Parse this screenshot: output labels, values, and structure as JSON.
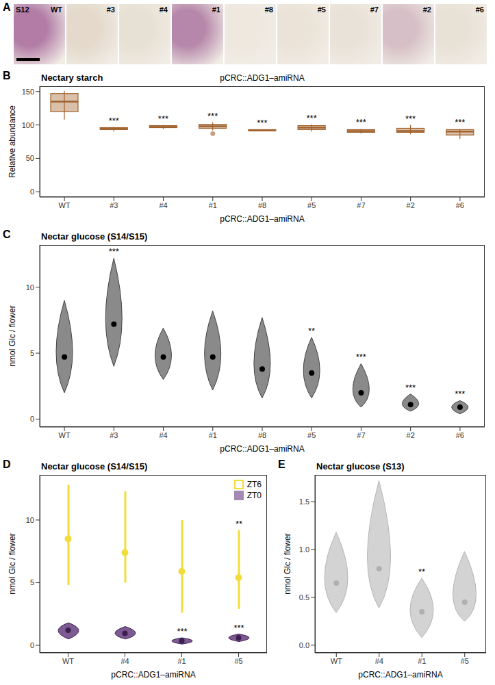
{
  "panel_a": {
    "panel_label": "A",
    "stage": "S12",
    "labels": [
      "WT",
      "#3",
      "#4",
      "#1",
      "#8",
      "#5",
      "#7",
      "#2",
      "#6"
    ],
    "colors": [
      "#b27ca6",
      "#e4d9cb",
      "#e7e0d4",
      "#b687aa",
      "#eee8df",
      "#ebe3d8",
      "#e9e2d8",
      "#d6bfc6",
      "#e8e1d6"
    ]
  },
  "chart_data": [
    {
      "panel_label": "B",
      "type": "box",
      "title": "Nectary starch",
      "subtitle": "pCRC::ADG1–amiRNA",
      "x_label": "pCRC::ADG1–amiRNA",
      "y_label": "Relative abundance",
      "categories": [
        "WT",
        "#3",
        "#4",
        "#1",
        "#8",
        "#5",
        "#7",
        "#2",
        "#6"
      ],
      "min": [
        108,
        90,
        94,
        92,
        91,
        90,
        87,
        86,
        79
      ],
      "q1": [
        120,
        93,
        96,
        95,
        92,
        93,
        89,
        89,
        85
      ],
      "median": [
        135,
        95,
        97,
        98,
        92,
        96,
        91,
        91,
        90
      ],
      "q3": [
        147,
        96,
        99,
        101,
        93,
        99,
        93,
        95,
        93
      ],
      "max": [
        151,
        97,
        100,
        104,
        93,
        101,
        94,
        100,
        94
      ],
      "outliers": [
        null,
        null,
        null,
        87,
        null,
        null,
        null,
        null,
        null
      ],
      "significance": [
        null,
        "***",
        "***",
        "***",
        "***",
        "***",
        "***",
        "***",
        "***"
      ],
      "color": "#a0612b",
      "ylim": [
        -8,
        158
      ],
      "yticks": [
        0,
        50,
        100,
        150
      ]
    },
    {
      "panel_label": "C",
      "type": "violin",
      "title": "Nectar glucose (S14/S15)",
      "x_label": "pCRC::ADG1–amiRNA",
      "y_label": "nmol Glc / flower",
      "categories": [
        "WT",
        "#3",
        "#4",
        "#1",
        "#8",
        "#5",
        "#7",
        "#2",
        "#6"
      ],
      "values": [
        4.7,
        7.2,
        4.7,
        4.7,
        3.8,
        3.5,
        2.0,
        1.1,
        0.9
      ],
      "min": [
        2.0,
        4.0,
        3.0,
        2.2,
        1.6,
        1.6,
        0.9,
        0.6,
        0.4
      ],
      "max": [
        9.0,
        12.2,
        6.9,
        8.2,
        7.7,
        6.2,
        4.2,
        1.9,
        1.4
      ],
      "significance": [
        null,
        "***",
        null,
        null,
        null,
        "**",
        "***",
        "***",
        "***"
      ],
      "color": "#8a8a8a",
      "ylim": [
        -0.6,
        13.2
      ],
      "yticks": [
        0,
        5,
        10
      ]
    },
    {
      "panel_label": "D",
      "type": "violin",
      "title": "Nectar glucose (S14/S15)",
      "x_label": "pCRC::ADG1–amiRNA",
      "y_label": "nmol Glc / flower",
      "categories": [
        "WT",
        "#4",
        "#1",
        "#5"
      ],
      "series": [
        {
          "name": "ZT6",
          "type": "range",
          "color": "#f2dc3c",
          "values": [
            8.5,
            7.4,
            5.9,
            5.4
          ],
          "min": [
            4.8,
            5.0,
            2.6,
            2.9
          ],
          "max": [
            12.8,
            12.3,
            10.0,
            9.2
          ],
          "significance": [
            null,
            null,
            null,
            "**"
          ]
        },
        {
          "name": "ZT0",
          "type": "violin",
          "color": "#7e5a93",
          "values": [
            1.2,
            0.95,
            0.35,
            0.6
          ],
          "min": [
            0.5,
            0.5,
            0.1,
            0.3
          ],
          "max": [
            1.8,
            1.5,
            0.6,
            0.9
          ],
          "significance": [
            null,
            null,
            "***",
            "***"
          ]
        }
      ],
      "legend": "top-right",
      "ylim": [
        -0.6,
        13.6
      ],
      "yticks": [
        0,
        5,
        10
      ]
    },
    {
      "panel_label": "E",
      "type": "violin",
      "title": "Nectar glucose (S13)",
      "x_label": "pCRC::ADG1–amiRNA",
      "y_label": "nmol Glc / flower",
      "categories": [
        "WT",
        "#4",
        "#1",
        "#5"
      ],
      "values": [
        0.65,
        0.8,
        0.35,
        0.45
      ],
      "min": [
        0.34,
        0.39,
        0.08,
        0.25
      ],
      "max": [
        1.18,
        1.72,
        0.7,
        0.98
      ],
      "significance": [
        null,
        null,
        "**",
        null
      ],
      "color": "#d3d3d3",
      "ylim": [
        -0.08,
        1.78
      ],
      "yticks": [
        {
          "value": 0,
          "label": "0.0"
        },
        {
          "value": 0.5,
          "label": "0.5"
        },
        {
          "value": 1,
          "label": "1.0"
        },
        {
          "value": 1.5,
          "label": "1.5"
        }
      ]
    }
  ]
}
